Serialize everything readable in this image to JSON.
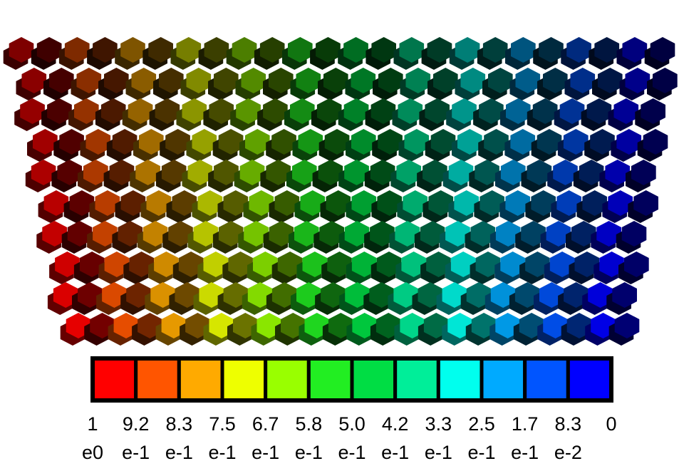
{
  "colorbar": {
    "colors": [
      "#ff0000",
      "#ff5500",
      "#ffaa00",
      "#eeff00",
      "#99ff00",
      "#22ee22",
      "#00dd44",
      "#00ee99",
      "#00ffee",
      "#00aaff",
      "#0055ff",
      "#0000ff"
    ],
    "labels": [
      {
        "mantissa": "1",
        "exponent": "e0"
      },
      {
        "mantissa": "9.2",
        "exponent": "e-1"
      },
      {
        "mantissa": "8.3",
        "exponent": "e-1"
      },
      {
        "mantissa": "7.5",
        "exponent": "e-1"
      },
      {
        "mantissa": "6.7",
        "exponent": "e-1"
      },
      {
        "mantissa": "5.8",
        "exponent": "e-1"
      },
      {
        "mantissa": "5.0",
        "exponent": "e-1"
      },
      {
        "mantissa": "4.2",
        "exponent": "e-1"
      },
      {
        "mantissa": "3.3",
        "exponent": "e-1"
      },
      {
        "mantissa": "2.5",
        "exponent": "e-1"
      },
      {
        "mantissa": "1.7",
        "exponent": "e-1"
      },
      {
        "mantissa": "8.3",
        "exponent": "e-2"
      },
      {
        "mantissa": "0"
      }
    ]
  }
}
